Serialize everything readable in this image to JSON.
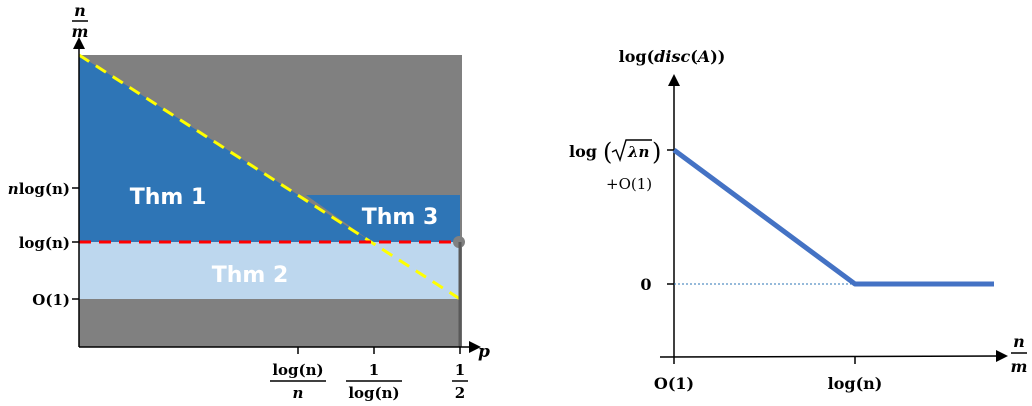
{
  "left_diagram": {
    "y_axis_label": {
      "numerator": "n",
      "denominator": "m"
    },
    "x_axis_label": "p",
    "y_ticks": [
      {
        "prefix": "n",
        "text": "log(n)"
      },
      {
        "prefix": "",
        "text": "log(n)"
      },
      {
        "prefix": "",
        "text": "O(1)"
      }
    ],
    "x_ticks": [
      {
        "numerator": "log(n)",
        "denominator": "n"
      },
      {
        "numerator": "1",
        "denominator": "log(n)"
      },
      {
        "numerator": "1",
        "denominator": "2"
      }
    ],
    "regions": {
      "thm1": "Thm 1",
      "thm2": "Thm 2",
      "thm3": "Thm 3"
    },
    "colors": {
      "background": "#808080",
      "thm1": "#2e75b6",
      "thm2": "#bdd7ee",
      "thm3": "#2e75b6",
      "yellow_line": "#ffff00",
      "red_line": "#ff0000"
    }
  },
  "right_diagram": {
    "y_axis_label": "log(disc(A))",
    "x_axis_label": {
      "numerator": "n",
      "denominator": "m"
    },
    "y_ticks": [
      {
        "text": "log",
        "sqrt_inner": "λn",
        "suffix": "+O(1)"
      },
      {
        "text": "0"
      }
    ],
    "x_ticks": [
      "O(1)",
      "log(n)"
    ],
    "colors": {
      "curve": "#4472c4",
      "dotted": "#2e75b6"
    }
  }
}
